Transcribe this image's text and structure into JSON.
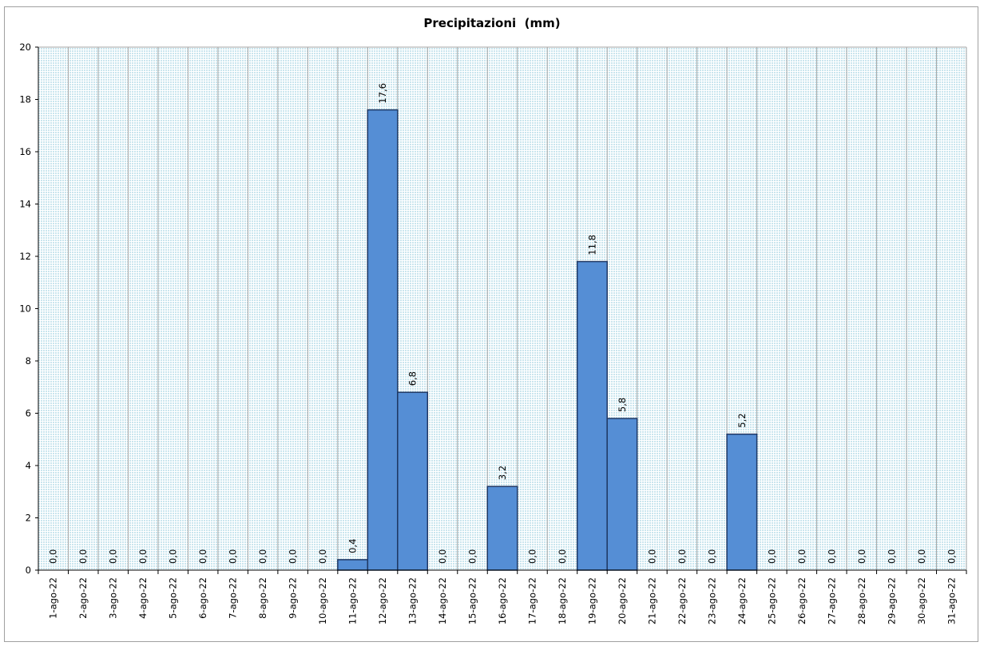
{
  "chart_data": {
    "type": "bar",
    "title": "Precipitazioni  (mm)",
    "xlabel": "",
    "ylabel": "",
    "ylim": [
      0,
      20
    ],
    "yticks": [
      "0",
      "2",
      "4",
      "6",
      "8",
      "10",
      "12",
      "14",
      "16",
      "18",
      "20"
    ],
    "categories": [
      "1-ago-22",
      "2-ago-22",
      "3-ago-22",
      "4-ago-22",
      "5-ago-22",
      "6-ago-22",
      "7-ago-22",
      "8-ago-22",
      "9-ago-22",
      "10-ago-22",
      "11-ago-22",
      "12-ago-22",
      "13-ago-22",
      "14-ago-22",
      "15-ago-22",
      "16-ago-22",
      "17-ago-22",
      "18-ago-22",
      "19-ago-22",
      "20-ago-22",
      "21-ago-22",
      "22-ago-22",
      "23-ago-22",
      "24-ago-22",
      "25-ago-22",
      "26-ago-22",
      "27-ago-22",
      "28-ago-22",
      "29-ago-22",
      "30-ago-22",
      "31-ago-22"
    ],
    "values": [
      0,
      0,
      0,
      0,
      0,
      0,
      0,
      0,
      0,
      0,
      0.4,
      17.6,
      6.8,
      0,
      0,
      3.2,
      0,
      0,
      11.8,
      5.8,
      0,
      0,
      0,
      5.2,
      0,
      0,
      0,
      0,
      0,
      0,
      0
    ],
    "data_labels": [
      "0,0",
      "0,0",
      "0,0",
      "0,0",
      "0,0",
      "0,0",
      "0,0",
      "0,0",
      "0,0",
      "0,0",
      "0,4",
      "17,6",
      "6,8",
      "0,0",
      "0,0",
      "3,2",
      "0,0",
      "0,0",
      "11,8",
      "5,8",
      "0,0",
      "0,0",
      "0,0",
      "5,2",
      "0,0",
      "0,0",
      "0,0",
      "0,0",
      "0,0",
      "0,0",
      "0,0"
    ],
    "grid": true,
    "legend": "none",
    "colors": {
      "bar_fill": "#558ed5",
      "bar_stroke": "#1f3864",
      "plot_background": "#dbeef3",
      "gridline": "#a6a6a6",
      "axis": "#000000"
    }
  }
}
